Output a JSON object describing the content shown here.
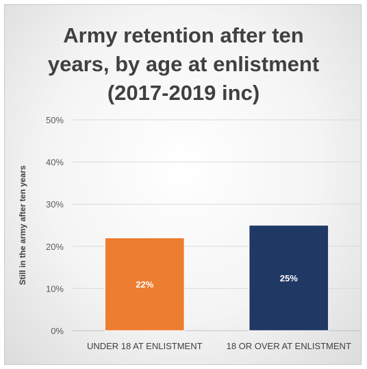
{
  "chart_data": {
    "type": "bar",
    "title_lines": [
      "Army retention after ten",
      "years, by age at enlistment",
      "(2017-2019 inc)"
    ],
    "categories": [
      "UNDER 18 AT ENLISTMENT",
      "18 OR OVER AT ENLISTMENT"
    ],
    "values": [
      22,
      25
    ],
    "data_labels": [
      "22%",
      "25%"
    ],
    "colors": [
      "#ED7D31",
      "#203864"
    ],
    "ylabel": "Still in the army after ten years",
    "xlabel": "",
    "ylim": [
      0,
      50
    ],
    "yticks": [
      0,
      10,
      20,
      30,
      40,
      50
    ],
    "ytick_labels": [
      "0%",
      "10%",
      "20%",
      "30%",
      "40%",
      "50%"
    ],
    "grid": true,
    "legend": "none"
  }
}
